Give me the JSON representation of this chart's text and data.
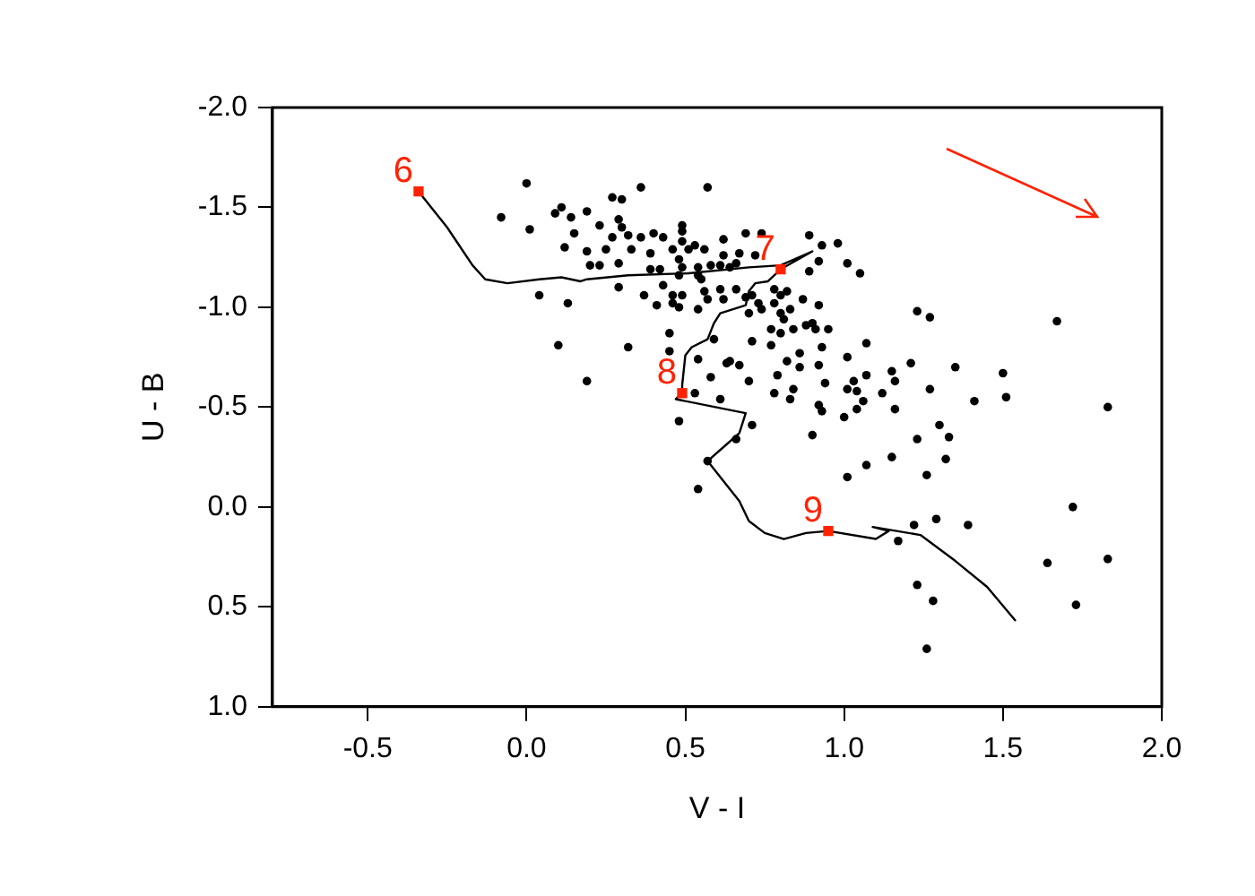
{
  "chart_data": {
    "type": "scatter",
    "xlabel": "V - I",
    "ylabel": "U - B",
    "xlim": [
      -0.8,
      2.0
    ],
    "ylim": [
      1.0,
      -2.0
    ],
    "xticks": [
      -0.5,
      {
        "value": 0,
        "label": "0.0"
      },
      0.5,
      {
        "value": 1,
        "label": "1.0"
      },
      1.5,
      {
        "value": 2,
        "label": "2.0"
      }
    ],
    "yticks": [
      {
        "value": -2,
        "label": "-2.0"
      },
      -1.5,
      {
        "value": -1,
        "label": "-1.0"
      },
      -0.5,
      {
        "value": 0,
        "label": "0.0"
      },
      0.5,
      {
        "value": 1,
        "label": "1.0"
      }
    ],
    "grid": false,
    "legend": false,
    "series": [
      {
        "type": "scatter",
        "color": "#000000",
        "marker": "circle",
        "x": [
          0.0,
          0.36,
          0.57,
          -0.08,
          0.09,
          0.11,
          0.27,
          0.3,
          0.19,
          0.14,
          0.01,
          0.23,
          0.29,
          0.3,
          0.15,
          0.12,
          0.19,
          0.25,
          0.27,
          0.32,
          0.33,
          0.36,
          0.4,
          0.2,
          0.23,
          0.29,
          0.39,
          0.39,
          0.43,
          0.46,
          0.49,
          0.49,
          0.49,
          0.51,
          0.53,
          0.56,
          0.62,
          0.69,
          0.74,
          0.62,
          0.67,
          0.72,
          0.48,
          0.49,
          0.48,
          0.54,
          0.58,
          0.61,
          0.64,
          0.66,
          0.42,
          0.54,
          0.55,
          0.43,
          0.29,
          0.04,
          0.13,
          0.37,
          0.41,
          0.46,
          0.49,
          0.46,
          0.48,
          0.54,
          0.56,
          0.57,
          0.61,
          0.62,
          0.66,
          0.69,
          0.71,
          0.73,
          0.7,
          0.74,
          0.78,
          0.8,
          0.82,
          0.78,
          0.8,
          0.83,
          0.87,
          0.89,
          0.93,
          0.98,
          0.92,
          0.89,
          0.45,
          0.59,
          0.71,
          0.1,
          0.32,
          0.45,
          0.54,
          0.63,
          0.67,
          0.58,
          0.7,
          0.77,
          0.82,
          0.86,
          0.93,
          0.92,
          0.91,
          0.77,
          0.8,
          0.84,
          0.88,
          0.9,
          0.81,
          0.19,
          0.53,
          0.61,
          0.79,
          0.78,
          0.84,
          0.83,
          0.92,
          0.93,
          0.9,
          0.48,
          0.71,
          0.66,
          0.54,
          1.23,
          1.27,
          1.67,
          1.83,
          1.07,
          1.01,
          1.07,
          1.03,
          1.01,
          1.04,
          1.06,
          1.04,
          1.0,
          0.94,
          0.92,
          0.95,
          0.86,
          0.64,
          1.15,
          1.16,
          1.21,
          1.27,
          1.35,
          1.41,
          1.5,
          1.51,
          1.12,
          1.16,
          1.3,
          1.33,
          1.23,
          1.15,
          1.07,
          1.01,
          1.26,
          1.32,
          1.01,
          1.05,
          0.57,
          1.22,
          1.29,
          1.39,
          1.17,
          1.23,
          1.28,
          1.26,
          1.72,
          1.64,
          1.83,
          1.73
        ],
        "values": [
          -1.62,
          -1.6,
          -1.6,
          -1.45,
          -1.47,
          -1.5,
          -1.55,
          -1.54,
          -1.48,
          -1.45,
          -1.39,
          -1.41,
          -1.44,
          -1.4,
          -1.37,
          -1.3,
          -1.28,
          -1.29,
          -1.35,
          -1.36,
          -1.29,
          -1.35,
          -1.37,
          -1.21,
          -1.21,
          -1.22,
          -1.19,
          -1.27,
          -1.35,
          -1.29,
          -1.41,
          -1.38,
          -1.33,
          -1.29,
          -1.31,
          -1.29,
          -1.34,
          -1.37,
          -1.37,
          -1.26,
          -1.27,
          -1.26,
          -1.24,
          -1.2,
          -1.16,
          -1.2,
          -1.21,
          -1.21,
          -1.2,
          -1.22,
          -1.19,
          -1.16,
          -1.14,
          -1.11,
          -1.1,
          -1.06,
          -1.02,
          -1.06,
          -1.01,
          -1.06,
          -1.06,
          -1.02,
          -1.0,
          -0.99,
          -1.08,
          -1.04,
          -1.09,
          -1.04,
          -1.09,
          -1.05,
          -1.06,
          -1.02,
          -0.97,
          -0.99,
          -1.09,
          -1.06,
          -1.08,
          -1.02,
          -0.97,
          -0.99,
          -1.04,
          -1.36,
          -1.31,
          -1.32,
          -1.23,
          -1.18,
          -0.87,
          -0.84,
          -0.83,
          -0.81,
          -0.8,
          -0.78,
          -0.74,
          -0.72,
          -0.71,
          -0.65,
          -0.63,
          -0.81,
          -0.73,
          -0.77,
          -0.8,
          -0.71,
          -0.89,
          -0.89,
          -0.87,
          -0.89,
          -0.91,
          -0.92,
          -0.94,
          -0.63,
          -0.57,
          -0.54,
          -0.66,
          -0.57,
          -0.59,
          -0.54,
          -0.51,
          -0.48,
          -0.36,
          -0.43,
          -0.41,
          -0.34,
          -0.09,
          -0.98,
          -0.95,
          -0.93,
          -0.5,
          -0.82,
          -0.75,
          -0.66,
          -0.63,
          -0.59,
          -0.58,
          -0.53,
          -0.49,
          -0.45,
          -0.62,
          -1.01,
          -0.89,
          -0.7,
          -0.73,
          -0.68,
          -0.63,
          -0.72,
          -0.59,
          -0.7,
          -0.53,
          -0.67,
          -0.55,
          -0.57,
          -0.49,
          -0.41,
          -0.35,
          -0.34,
          -0.25,
          -0.21,
          -0.15,
          -0.16,
          -0.24,
          -1.22,
          -1.17,
          -0.23,
          0.09,
          0.06,
          0.09,
          0.17,
          0.39,
          0.47,
          0.71,
          0.0,
          0.28,
          0.26,
          0.49
        ]
      },
      {
        "type": "line",
        "color": "#000000",
        "marker": "none",
        "x": [
          -0.34,
          -0.25,
          -0.17,
          -0.13,
          -0.06,
          0.04,
          0.11,
          0.17,
          0.19,
          0.32,
          0.51,
          0.7,
          0.8,
          0.9,
          0.8,
          0.76,
          0.72,
          0.7,
          0.69,
          0.61,
          0.59,
          0.57,
          0.52,
          0.5,
          0.49,
          0.49,
          0.47,
          0.69,
          0.67,
          0.62,
          0.57,
          0.59,
          0.67,
          0.7,
          0.75,
          0.81,
          0.88,
          0.95,
          1.1,
          1.14,
          1.09,
          1.24,
          1.35,
          1.45,
          1.54
        ],
        "values": [
          -1.58,
          -1.4,
          -1.21,
          -1.14,
          -1.12,
          -1.14,
          -1.15,
          -1.13,
          -1.14,
          -1.16,
          -1.17,
          -1.2,
          -1.21,
          -1.28,
          -1.19,
          -1.13,
          -1.12,
          -1.08,
          -1.01,
          -0.97,
          -0.92,
          -0.84,
          -0.8,
          -0.76,
          -0.61,
          -0.57,
          -0.54,
          -0.47,
          -0.37,
          -0.3,
          -0.23,
          -0.19,
          -0.03,
          0.07,
          0.13,
          0.16,
          0.13,
          0.12,
          0.16,
          0.12,
          0.1,
          0.14,
          0.27,
          0.4,
          0.57
        ]
      },
      {
        "type": "scatter",
        "color": "#ff2200",
        "marker": "square",
        "x": [
          -0.34,
          0.8,
          0.49,
          0.95
        ],
        "values": [
          -1.58,
          -1.19,
          -0.57,
          0.12
        ]
      }
    ],
    "annotations": [
      {
        "text": "6",
        "x": -0.34,
        "y": -1.58
      },
      {
        "text": "7",
        "x": 0.8,
        "y": -1.19
      },
      {
        "text": "8",
        "x": 0.49,
        "y": -0.57
      },
      {
        "text": "9",
        "x": 0.95,
        "y": 0.12
      }
    ]
  }
}
